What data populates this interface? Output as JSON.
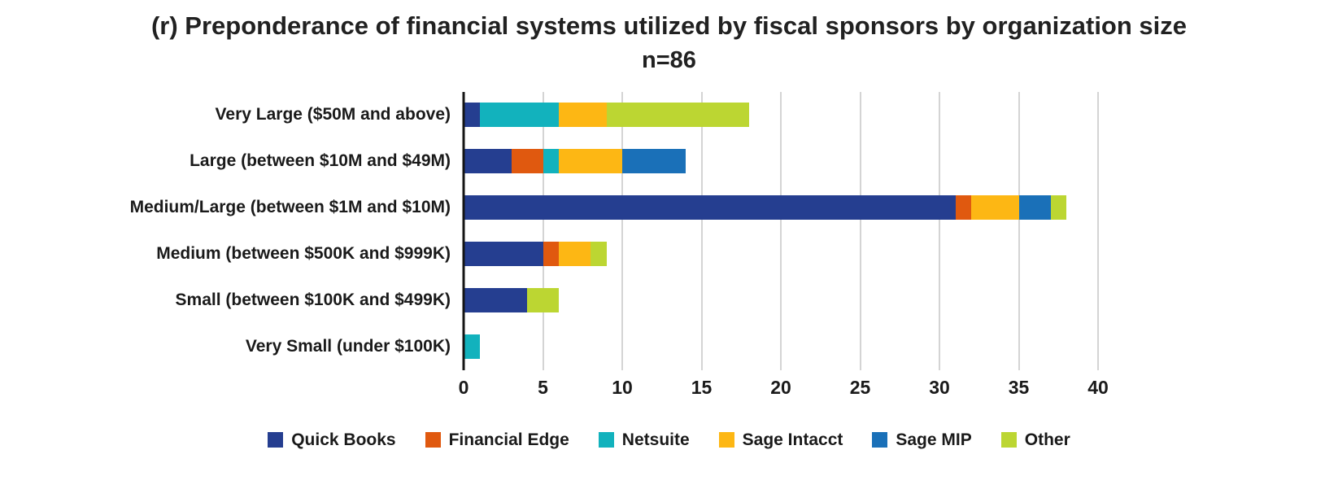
{
  "chart_data": {
    "type": "bar",
    "orientation": "horizontal",
    "stacked": true,
    "title": "(r) Preponderance of financial systems utilized by fiscal sponsors by organization size",
    "subtitle": "n=86",
    "categories": [
      "Very Large ($50M and above)",
      "Large (between $10M and $49M)",
      "Medium/Large (between $1M and $10M)",
      "Medium (between $500K and $999K)",
      "Small (between $100K and $499K)",
      "Very Small (under $100K)"
    ],
    "series": [
      {
        "name": "Quick Books",
        "color": "#253e90",
        "values": [
          1,
          3,
          31,
          5,
          4,
          0
        ]
      },
      {
        "name": "Financial Edge",
        "color": "#e0590f",
        "values": [
          0,
          2,
          1,
          1,
          0,
          0
        ]
      },
      {
        "name": "Netsuite",
        "color": "#12b2bd",
        "values": [
          5,
          1,
          0,
          0,
          0,
          1
        ]
      },
      {
        "name": "Sage Intacct",
        "color": "#fdb714",
        "values": [
          3,
          4,
          3,
          2,
          0,
          0
        ]
      },
      {
        "name": "Sage MIP",
        "color": "#1a70b8",
        "values": [
          0,
          4,
          2,
          0,
          0,
          0
        ]
      },
      {
        "name": "Other",
        "color": "#bcd632",
        "values": [
          9,
          0,
          1,
          1,
          2,
          0
        ]
      }
    ],
    "x_ticks": [
      0,
      5,
      10,
      15,
      20,
      25,
      30,
      35,
      40
    ],
    "xlim": [
      0,
      40
    ],
    "grid": true,
    "legend_position": "bottom",
    "colors": {
      "grid": "#d4d4d4",
      "axis": "#151515",
      "text": "#1a1a1a"
    }
  }
}
